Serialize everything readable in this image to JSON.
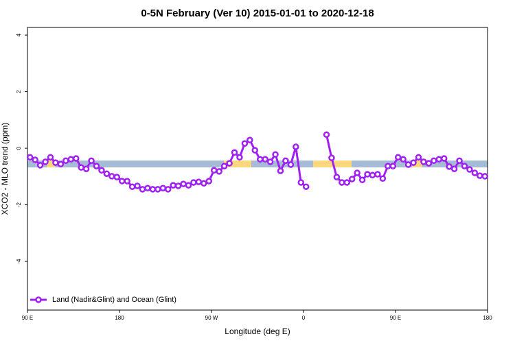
{
  "chart_data": {
    "type": "line",
    "title": "0-5N February (Ver 10)   2015-01-01 to 2020-12-18",
    "xlabel": "Longitude (deg E)",
    "ylabel": "XCO2 - MLO trend (ppm)",
    "xlim": [
      90,
      540
    ],
    "ylim": [
      -5.72,
      4.27
    ],
    "xticks": [
      {
        "value": 90,
        "label": "90 E"
      },
      180,
      {
        "value": 270,
        "label": "90 W"
      },
      {
        "value": 360,
        "label": "0"
      },
      {
        "value": 450,
        "label": "90 E"
      },
      {
        "value": 540,
        "label": "180"
      }
    ],
    "yticks": [
      -4,
      -2,
      0,
      2,
      4
    ],
    "legend": "bottom-left",
    "x": [
      92.5,
      97.5,
      102.5,
      107.5,
      112.5,
      117.5,
      122.5,
      127.5,
      132.5,
      137.5,
      142.5,
      147.5,
      152.5,
      157.5,
      162.5,
      167.5,
      172.5,
      177.5,
      182.5,
      187.5,
      192.5,
      197.5,
      202.5,
      207.5,
      212.5,
      217.5,
      222.5,
      227.5,
      232.5,
      237.5,
      242.5,
      247.5,
      252.5,
      257.5,
      262.5,
      267.5,
      272.5,
      277.5,
      282.5,
      287.5,
      292.5,
      297.5,
      302.5,
      307.5,
      312.5,
      317.5,
      322.5,
      327.5,
      332.5,
      337.5,
      342.5,
      347.5,
      352.5,
      357.5,
      362.5,
      367.5,
      372.5,
      377.5,
      382.5,
      387.5,
      392.5,
      397.5,
      402.5,
      407.5,
      412.5,
      417.5,
      422.5,
      427.5,
      432.5,
      437.5,
      442.5,
      447.5,
      452.5,
      457.5,
      462.5,
      467.5,
      472.5,
      477.5,
      482.5,
      487.5,
      492.5,
      497.5,
      502.5,
      507.5,
      512.5,
      517.5,
      522.5,
      527.5,
      532.5,
      537.5
    ],
    "series": [
      {
        "name": "Land (Nadir&Glint) and Ocean (Glint)",
        "color": "#a020f0",
        "values": [
          -0.32,
          -0.41,
          -0.6,
          -0.48,
          -0.32,
          -0.51,
          -0.56,
          -0.44,
          -0.39,
          -0.36,
          -0.68,
          -0.73,
          -0.44,
          -0.63,
          -0.78,
          -0.9,
          -0.99,
          -1.02,
          -1.16,
          -1.16,
          -1.36,
          -1.33,
          -1.45,
          -1.41,
          -1.45,
          -1.45,
          -1.41,
          -1.45,
          -1.31,
          -1.33,
          -1.26,
          -1.31,
          -1.21,
          -1.19,
          -1.24,
          -1.16,
          -0.78,
          -0.82,
          -0.63,
          -0.53,
          -0.15,
          -0.32,
          0.17,
          0.29,
          -0.07,
          -0.39,
          -0.39,
          -0.48,
          -0.22,
          -0.8,
          -0.44,
          -0.58,
          0.05,
          -1.21,
          -1.36,
          null,
          null,
          null,
          0.48,
          -0.34,
          -1.02,
          -1.21,
          -1.21,
          -1.09,
          -0.87,
          -1.12,
          -0.92,
          -0.95,
          -0.92,
          -1.07,
          -0.63,
          -0.63,
          -0.32,
          -0.39,
          -0.58,
          -0.51,
          -0.32,
          -0.48,
          -0.53,
          -0.44,
          -0.39,
          -0.36,
          -0.65,
          -0.73,
          -0.44,
          -0.63,
          -0.75,
          -0.87,
          -0.97,
          -0.99
        ]
      }
    ]
  }
}
